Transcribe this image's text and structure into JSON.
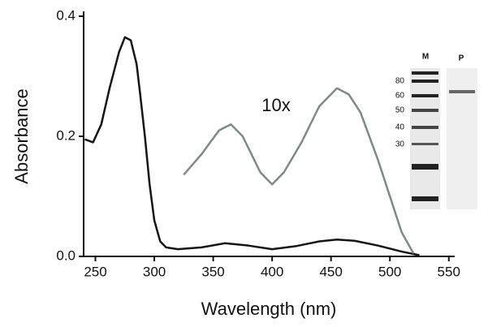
{
  "chart_data": {
    "type": "line",
    "x_label": "Wavelength (nm)",
    "y_label": "Absorbance",
    "xlim": [
      240,
      555
    ],
    "ylim": [
      0,
      0.4
    ],
    "xticks": [
      250,
      300,
      350,
      400,
      450,
      500,
      550
    ],
    "yticks": [
      {
        "value": 0,
        "label": "0.0"
      },
      0.2,
      0.4
    ],
    "grid": false,
    "annotation": "10x",
    "series": [
      {
        "color": "#151515",
        "x": [
          241,
          248,
          255,
          262,
          270,
          275,
          280,
          285,
          288,
          292,
          296,
          300,
          305,
          310,
          320,
          340,
          360,
          380,
          400,
          420,
          440,
          455,
          470,
          490,
          510,
          525
        ],
        "values": [
          0.195,
          0.19,
          0.22,
          0.28,
          0.34,
          0.365,
          0.36,
          0.32,
          0.27,
          0.2,
          0.12,
          0.06,
          0.025,
          0.015,
          0.012,
          0.015,
          0.022,
          0.018,
          0.012,
          0.017,
          0.025,
          0.028,
          0.026,
          0.018,
          0.008,
          0.002
        ]
      },
      {
        "color": "#7d8a85",
        "x": [
          325,
          340,
          355,
          365,
          375,
          390,
          400,
          410,
          425,
          440,
          455,
          465,
          475,
          490,
          500,
          510,
          520
        ],
        "values": [
          0.136,
          0.17,
          0.21,
          0.22,
          0.2,
          0.14,
          0.12,
          0.14,
          0.19,
          0.25,
          0.28,
          0.27,
          0.24,
          0.16,
          0.1,
          0.04,
          0.005
        ]
      }
    ],
    "inset": {
      "lanes": [
        "M",
        "P"
      ],
      "marker_labels": [
        "80",
        "60",
        "50",
        "40",
        "30"
      ]
    }
  }
}
